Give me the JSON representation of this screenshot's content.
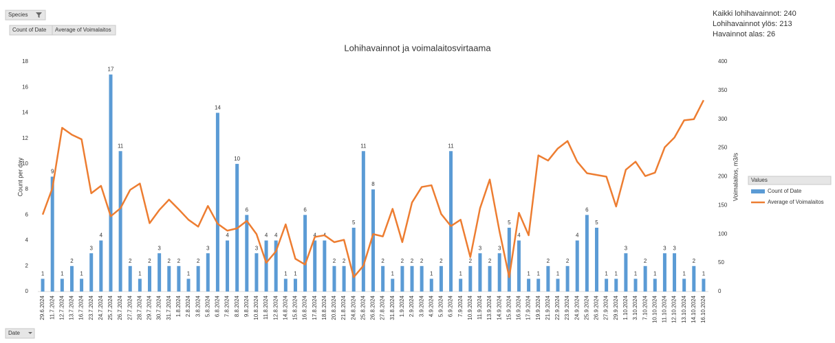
{
  "pivot_buttons": {
    "species": "Species",
    "values": [
      "Count of Date",
      "Average of Voimalaitos"
    ],
    "axis": "Date"
  },
  "summary": [
    "Kaikki lohihavainnot: 240",
    "Lohihavainnot ylös: 213",
    "Havainnot alas: 26"
  ],
  "chart_data": {
    "type": "bar",
    "title": "Lohihavainnot ja voimalaitosvirtaama",
    "y_label": "Count per day",
    "y2_label": "Voimalaitos, m3/s",
    "legend_title": "Values",
    "legend": "right",
    "categories": [
      "29.6.2024",
      "11.7.2024",
      "12.7.2024",
      "13.7.2024",
      "16.7.2024",
      "23.7.2024",
      "24.7.2024",
      "25.7.2024",
      "26.7.2024",
      "27.7.2024",
      "28.7.2024",
      "29.7.2024",
      "30.7.2024",
      "31.7.2024",
      "1.8.2024",
      "2.8.2024",
      "3.8.2024",
      "5.8.2024",
      "6.8.2024",
      "7.8.2024",
      "8.8.2024",
      "9.8.2024",
      "10.8.2024",
      "11.8.2024",
      "12.8.2024",
      "14.8.2024",
      "15.8.2024",
      "16.8.2024",
      "17.8.2024",
      "18.8.2024",
      "20.8.2024",
      "21.8.2024",
      "24.8.2024",
      "25.8.2024",
      "26.8.2024",
      "27.8.2024",
      "31.8.2024",
      "1.9.2024",
      "2.9.2024",
      "3.9.2024",
      "4.9.2024",
      "5.9.2024",
      "6.9.2024",
      "7.9.2024",
      "10.9.2024",
      "11.9.2024",
      "13.9.2024",
      "14.9.2024",
      "15.9.2024",
      "16.9.2024",
      "17.9.2024",
      "19.9.2024",
      "21.9.2024",
      "22.9.2024",
      "23.9.2024",
      "24.9.2024",
      "25.9.2024",
      "26.9.2024",
      "27.9.2024",
      "29.9.2024",
      "1.10.2024",
      "3.10.2024",
      "7.10.2024",
      "10.10.2024",
      "11.10.2024",
      "12.10.2024",
      "13.10.2024",
      "14.10.2024",
      "16.10.2024"
    ],
    "series": [
      {
        "name": "Count of Date",
        "type": "bar",
        "color": "#5b9bd5",
        "axis": "y",
        "values": [
          1,
          9,
          1,
          2,
          1,
          3,
          4,
          17,
          11,
          2,
          1,
          2,
          3,
          2,
          2,
          1,
          2,
          3,
          14,
          4,
          10,
          6,
          3,
          4,
          4,
          1,
          1,
          6,
          4,
          4,
          2,
          2,
          5,
          11,
          8,
          2,
          1,
          2,
          2,
          2,
          1,
          2,
          11,
          1,
          2,
          3,
          2,
          3,
          5,
          4,
          1,
          1,
          2,
          1,
          2,
          4,
          6,
          5,
          1,
          1,
          3,
          1,
          2,
          1,
          3,
          3,
          1,
          2,
          1
        ]
      },
      {
        "name": "Average of Voimalaitos",
        "type": "line",
        "color": "#ed7d31",
        "axis": "y2",
        "values": [
          134,
          180,
          285,
          273,
          265,
          171,
          184,
          131,
          145,
          177,
          188,
          119,
          142,
          160,
          143,
          125,
          113,
          149,
          118,
          106,
          110,
          123,
          100,
          50,
          70,
          117,
          57,
          47,
          95,
          98,
          86,
          90,
          25,
          45,
          100,
          96,
          144,
          86,
          155,
          182,
          185,
          135,
          114,
          125,
          60,
          145,
          195,
          105,
          25,
          137,
          98,
          237,
          228,
          249,
          262,
          226,
          206,
          203,
          200,
          148,
          212,
          226,
          201,
          207,
          251,
          268,
          298,
          300,
          333
        ]
      }
    ],
    "ylim": [
      0,
      18
    ],
    "yticks": [
      0,
      2,
      4,
      6,
      8,
      10,
      12,
      14,
      16,
      18
    ],
    "y2lim": [
      0,
      400
    ],
    "y2ticks": [
      0,
      50,
      100,
      150,
      200,
      250,
      300,
      350,
      400
    ],
    "grid": false
  }
}
